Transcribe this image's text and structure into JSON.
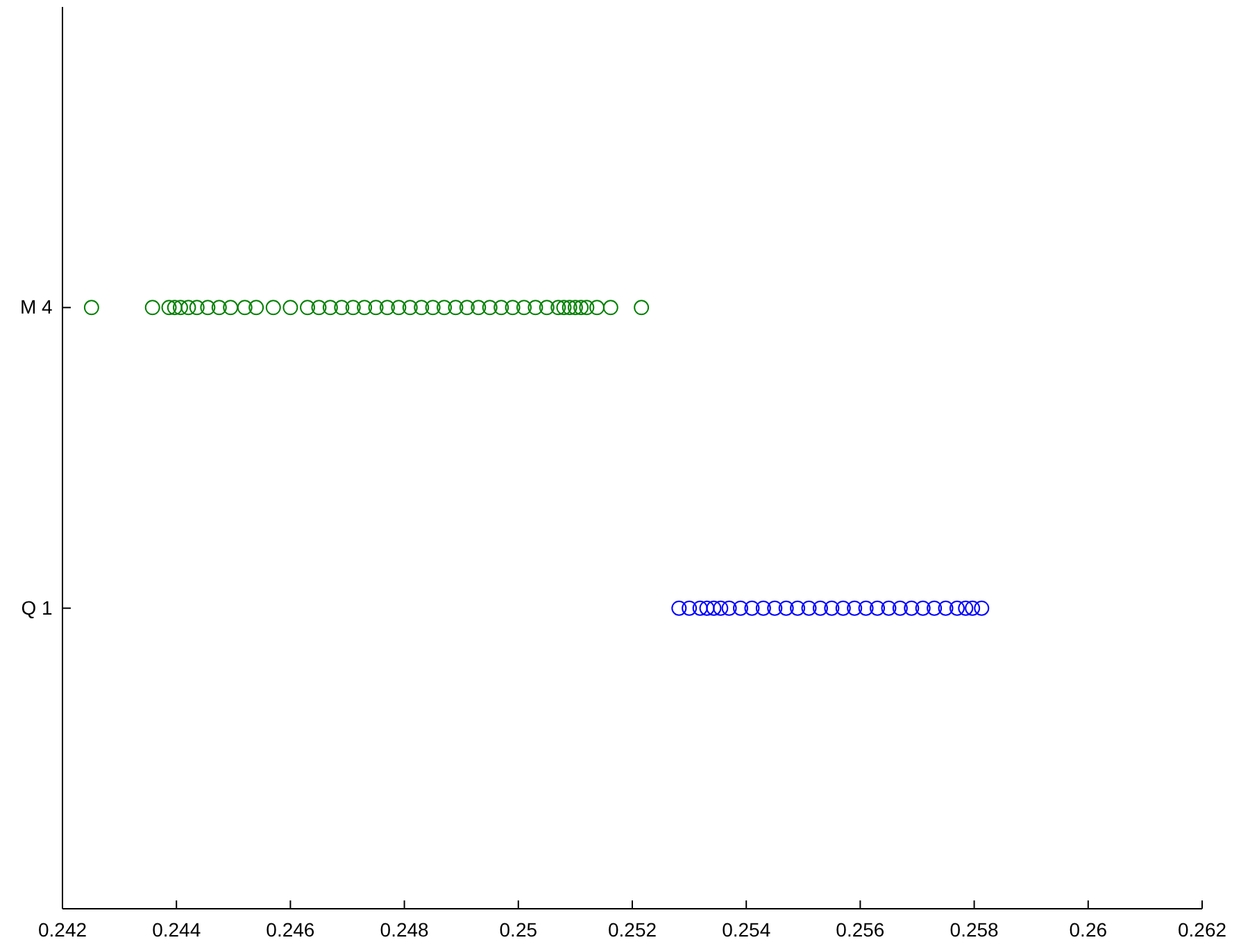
{
  "chart_data": {
    "type": "scatter",
    "orientation": "horizontal",
    "categories": [
      "M 4",
      "Q 1"
    ],
    "marker": "circle",
    "grid": false,
    "legend": false,
    "xlim": [
      0.242,
      0.262
    ],
    "xticks": [
      0.242,
      0.244,
      0.246,
      0.248,
      0.25,
      0.252,
      0.254,
      0.256,
      0.258,
      0.26,
      0.262
    ],
    "series": [
      {
        "color": "#008000",
        "x": [
          "M 4",
          "M 4",
          "M 4",
          "M 4",
          "M 4",
          "M 4",
          "M 4",
          "M 4",
          "M 4",
          "M 4",
          "M 4",
          "M 4",
          "M 4",
          "M 4",
          "M 4",
          "M 4",
          "M 4",
          "M 4",
          "M 4",
          "M 4",
          "M 4",
          "M 4",
          "M 4",
          "M 4",
          "M 4",
          "M 4",
          "M 4",
          "M 4",
          "M 4",
          "M 4",
          "M 4",
          "M 4",
          "M 4",
          "M 4",
          "M 4",
          "M 4",
          "M 4",
          "M 4",
          "M 4",
          "M 4",
          "M 4",
          "M 4",
          "M 4",
          "M 4",
          "M 4"
        ],
        "values": [
          0.24251,
          0.24358,
          0.24387,
          0.24397,
          0.24407,
          0.24421,
          0.24436,
          0.24455,
          0.24475,
          0.24495,
          0.2452,
          0.2454,
          0.2457,
          0.246,
          0.2463,
          0.2465,
          0.2467,
          0.2469,
          0.2471,
          0.2473,
          0.2475,
          0.2477,
          0.2479,
          0.2481,
          0.2483,
          0.2485,
          0.2487,
          0.2489,
          0.2491,
          0.2493,
          0.2495,
          0.2497,
          0.2499,
          0.2501,
          0.2503,
          0.2505,
          0.2507,
          0.2508,
          0.2509,
          0.251,
          0.2511,
          0.2512,
          0.25138,
          0.25162,
          0.25216
        ]
      },
      {
        "color": "#0000ff",
        "x": [
          "Q 1",
          "Q 1",
          "Q 1",
          "Q 1",
          "Q 1",
          "Q 1",
          "Q 1",
          "Q 1",
          "Q 1",
          "Q 1",
          "Q 1",
          "Q 1",
          "Q 1",
          "Q 1",
          "Q 1",
          "Q 1",
          "Q 1",
          "Q 1",
          "Q 1",
          "Q 1",
          "Q 1",
          "Q 1",
          "Q 1",
          "Q 1",
          "Q 1",
          "Q 1",
          "Q 1",
          "Q 1",
          "Q 1",
          "Q 1"
        ],
        "values": [
          0.25282,
          0.253,
          0.25319,
          0.25331,
          0.25343,
          0.25355,
          0.2537,
          0.2539,
          0.2541,
          0.2543,
          0.2545,
          0.2547,
          0.2549,
          0.2551,
          0.2553,
          0.2555,
          0.2557,
          0.2559,
          0.2561,
          0.2563,
          0.2565,
          0.2567,
          0.2569,
          0.2571,
          0.2573,
          0.2575,
          0.2577,
          0.25785,
          0.25797,
          0.25813
        ]
      }
    ]
  }
}
